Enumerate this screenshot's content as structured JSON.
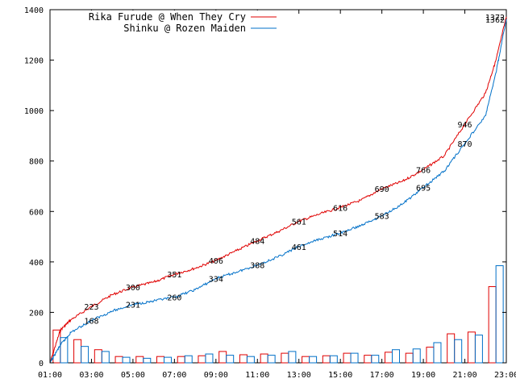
{
  "chart_data": {
    "type": "line",
    "title": "",
    "xlabel": "",
    "ylabel": "",
    "ylim": [
      0,
      1400
    ],
    "xlim": [
      "01:00",
      "23:00"
    ],
    "y_ticks": [
      "0",
      "200",
      "400",
      "600",
      "800",
      "1000",
      "1200",
      "1400"
    ],
    "x_ticks": [
      "01:00",
      "03:00",
      "05:00",
      "07:00",
      "09:00",
      "11:00",
      "13:00",
      "15:00",
      "17:00",
      "19:00",
      "21:00",
      "23:00"
    ],
    "grid": false,
    "legend_position": "top-left",
    "series": [
      {
        "name": "Rika Furude @ When They Cry",
        "color": "#e00000",
        "cumulative": [
          {
            "x": 1.0,
            "y": 0
          },
          {
            "x": 1.5,
            "y": 130
          },
          {
            "x": 2.0,
            "y": 170
          },
          {
            "x": 3.0,
            "y": 223
          },
          {
            "x": 4.0,
            "y": 270
          },
          {
            "x": 5.0,
            "y": 300
          },
          {
            "x": 6.0,
            "y": 320
          },
          {
            "x": 7.0,
            "y": 351
          },
          {
            "x": 8.0,
            "y": 375
          },
          {
            "x": 9.0,
            "y": 406
          },
          {
            "x": 10.0,
            "y": 445
          },
          {
            "x": 11.0,
            "y": 484
          },
          {
            "x": 12.0,
            "y": 520
          },
          {
            "x": 13.0,
            "y": 561
          },
          {
            "x": 14.0,
            "y": 590
          },
          {
            "x": 15.0,
            "y": 616
          },
          {
            "x": 16.0,
            "y": 645
          },
          {
            "x": 17.0,
            "y": 690
          },
          {
            "x": 18.0,
            "y": 720
          },
          {
            "x": 19.0,
            "y": 766
          },
          {
            "x": 20.0,
            "y": 820
          },
          {
            "x": 21.0,
            "y": 946
          },
          {
            "x": 22.0,
            "y": 1070
          },
          {
            "x": 22.5,
            "y": 1200
          },
          {
            "x": 23.0,
            "y": 1372
          }
        ],
        "point_labels": [
          {
            "x": 3.0,
            "y": 223,
            "text": "223"
          },
          {
            "x": 5.0,
            "y": 300,
            "text": "300"
          },
          {
            "x": 7.0,
            "y": 351,
            "text": "351"
          },
          {
            "x": 9.0,
            "y": 406,
            "text": "406"
          },
          {
            "x": 11.0,
            "y": 484,
            "text": "484"
          },
          {
            "x": 13.0,
            "y": 561,
            "text": "561"
          },
          {
            "x": 15.0,
            "y": 616,
            "text": "616"
          },
          {
            "x": 17.0,
            "y": 690,
            "text": "690"
          },
          {
            "x": 19.0,
            "y": 766,
            "text": "766"
          },
          {
            "x": 21.0,
            "y": 946,
            "text": "946"
          },
          {
            "x": 23.0,
            "y": 1372,
            "text": "1372"
          }
        ],
        "hourly": [
          130,
          92,
          52,
          25,
          25,
          25,
          25,
          28,
          45,
          32,
          35,
          38,
          25,
          28,
          38,
          30,
          42,
          38,
          62,
          115,
          122,
          302
        ]
      },
      {
        "name": "Shinku @ Rozen Maiden",
        "color": "#0070c8",
        "cumulative": [
          {
            "x": 1.0,
            "y": 0
          },
          {
            "x": 1.5,
            "y": 70
          },
          {
            "x": 2.0,
            "y": 120
          },
          {
            "x": 3.0,
            "y": 168
          },
          {
            "x": 4.0,
            "y": 205
          },
          {
            "x": 5.0,
            "y": 231
          },
          {
            "x": 6.0,
            "y": 245
          },
          {
            "x": 7.0,
            "y": 260
          },
          {
            "x": 8.0,
            "y": 290
          },
          {
            "x": 9.0,
            "y": 334
          },
          {
            "x": 10.0,
            "y": 360
          },
          {
            "x": 11.0,
            "y": 388
          },
          {
            "x": 12.0,
            "y": 420
          },
          {
            "x": 13.0,
            "y": 461
          },
          {
            "x": 14.0,
            "y": 490
          },
          {
            "x": 15.0,
            "y": 514
          },
          {
            "x": 16.0,
            "y": 545
          },
          {
            "x": 17.0,
            "y": 583
          },
          {
            "x": 18.0,
            "y": 630
          },
          {
            "x": 19.0,
            "y": 695
          },
          {
            "x": 20.0,
            "y": 760
          },
          {
            "x": 21.0,
            "y": 870
          },
          {
            "x": 22.0,
            "y": 980
          },
          {
            "x": 22.5,
            "y": 1150
          },
          {
            "x": 23.0,
            "y": 1362
          }
        ],
        "point_labels": [
          {
            "x": 3.0,
            "y": 168,
            "text": "168"
          },
          {
            "x": 5.0,
            "y": 231,
            "text": "231"
          },
          {
            "x": 7.0,
            "y": 260,
            "text": "260"
          },
          {
            "x": 9.0,
            "y": 334,
            "text": "334"
          },
          {
            "x": 11.0,
            "y": 388,
            "text": "388"
          },
          {
            "x": 13.0,
            "y": 461,
            "text": "461"
          },
          {
            "x": 15.0,
            "y": 514,
            "text": "514"
          },
          {
            "x": 17.0,
            "y": 583,
            "text": "583"
          },
          {
            "x": 19.0,
            "y": 695,
            "text": "695"
          },
          {
            "x": 21.0,
            "y": 870,
            "text": "870"
          },
          {
            "x": 23.0,
            "y": 1362,
            "text": "1362"
          }
        ],
        "hourly": [
          100,
          65,
          45,
          22,
          18,
          22,
          28,
          35,
          30,
          25,
          30,
          45,
          25,
          28,
          38,
          30,
          52,
          55,
          80,
          92,
          110,
          385
        ]
      }
    ]
  }
}
